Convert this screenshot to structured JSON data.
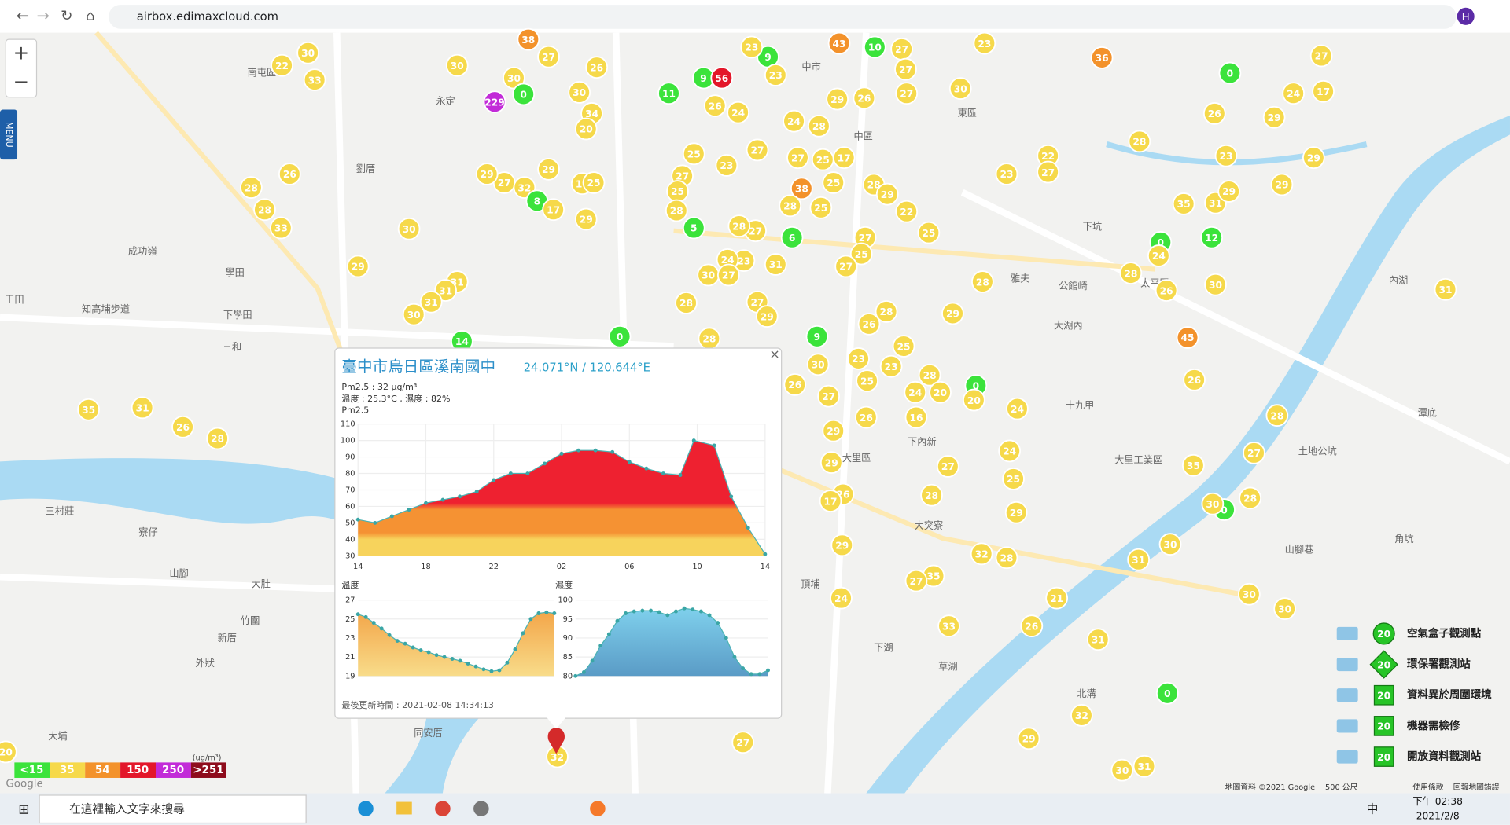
{
  "browser": {
    "url": "airbox.edimaxcloud.com",
    "profile": "H"
  },
  "map": {
    "zoom_in": "+",
    "zoom_out": "−",
    "menu": "MENU",
    "google": "Google",
    "attribution": "地圖資料 ©2021 Google",
    "scale": "500 公尺",
    "terms": "使用條款",
    "report": "回報地圖錯誤",
    "places": [
      "南屯區",
      "永定",
      "中市",
      "東區",
      "中區",
      "劉厝",
      "成功嶺",
      "學田",
      "下學田",
      "三和",
      "知高埔步道",
      "王田",
      "山腳",
      "大肚",
      "竹圍",
      "新厝",
      "外狀",
      "三村莊",
      "寮仔",
      "大埔",
      "同安厝",
      "大里區",
      "大突寮",
      "草湖",
      "北溝",
      "太平區",
      "內湖",
      "潭底",
      "角坑",
      "山腳巷",
      "公館崎",
      "大湖內",
      "十九甲",
      "大里工業區",
      "土地公坑",
      "下坑",
      "雅夫",
      "下內新",
      "頂埔",
      "下湖"
    ],
    "markers": [
      30,
      22,
      33,
      30,
      38,
      27,
      30,
      229,
      0,
      30,
      26,
      34,
      20,
      11,
      9,
      56,
      9,
      23,
      23,
      26,
      24,
      43,
      10,
      27,
      27,
      27,
      26,
      29,
      24,
      28,
      30,
      23,
      36,
      0,
      27,
      24,
      17,
      26,
      29,
      28,
      23,
      29,
      22,
      23,
      27,
      17,
      25,
      27,
      27,
      23,
      25,
      27,
      25,
      28,
      5,
      6,
      38,
      25,
      25,
      28,
      28,
      29,
      22,
      27,
      28,
      25,
      27,
      25,
      27,
      31,
      23,
      24,
      30,
      27,
      29,
      27,
      32,
      29,
      8,
      17,
      29,
      17,
      25,
      30,
      29,
      31,
      31,
      31,
      30,
      14,
      28,
      26,
      28,
      33,
      35,
      31,
      29,
      29,
      0,
      12,
      24,
      28,
      26,
      30,
      31,
      28,
      29,
      28,
      26,
      25,
      9,
      28,
      27,
      29,
      28,
      0,
      35,
      31,
      26,
      28,
      45,
      30,
      23,
      23,
      25,
      28,
      0,
      20,
      20,
      24,
      27,
      26,
      16,
      26,
      29,
      24,
      26,
      28,
      24,
      25,
      27,
      29,
      26,
      17,
      28,
      29,
      35,
      27,
      28,
      0,
      30,
      30,
      31,
      28,
      32,
      29,
      35,
      27,
      24,
      21,
      26,
      33,
      31,
      30,
      30,
      0,
      32,
      29,
      27,
      32,
      30,
      31,
      20
    ]
  },
  "aqi_scale": {
    "unit": "(ug/m³)",
    "levels": [
      {
        "label": "<15",
        "color": "#3be33b"
      },
      {
        "label": "35",
        "color": "#f6d94a"
      },
      {
        "label": "54",
        "color": "#f3922b"
      },
      {
        "label": "150",
        "color": "#e3172a"
      },
      {
        "label": "250",
        "color": "#c22bd8"
      },
      {
        "label": ">251",
        "color": "#8e0c1c"
      }
    ]
  },
  "station_legend": [
    {
      "icon": "20",
      "label": "空氣盒子觀測點"
    },
    {
      "icon": "20",
      "label": "環保署觀測站"
    },
    {
      "icon": "20",
      "label": "資料異於周圍環境"
    },
    {
      "icon": "20",
      "label": "機器需檢修"
    },
    {
      "icon": "20",
      "label": "開放資料觀測站"
    }
  ],
  "popup": {
    "close": "×",
    "title": "臺中市烏日區溪南國中",
    "coords": "24.071°N / 120.644°E",
    "pm25": "Pm2.5 : 32 μg/m³",
    "weather": "溫度 : 25.3°C , 濕度 : 82%",
    "updated": "最後更新時間 : 2021-02-08 14:34:13",
    "charts": [
      {
        "type": "area",
        "title": "Pm2.5",
        "x": [
          0,
          1,
          2,
          3,
          4,
          5,
          6,
          7,
          8,
          9,
          10,
          11,
          12,
          13,
          14,
          15,
          16,
          17,
          18,
          19,
          19.8,
          21,
          22,
          23,
          24
        ],
        "values": [
          52,
          50,
          54,
          58,
          62,
          64,
          66,
          69,
          76,
          80,
          80,
          86,
          92,
          94,
          94,
          93,
          87,
          83,
          80,
          79,
          100,
          97,
          66,
          47,
          31
        ],
        "xlim": [
          0,
          24
        ],
        "xticks": [
          {
            "value": 0,
            "label": "14"
          },
          {
            "value": 4,
            "label": "18"
          },
          {
            "value": 8,
            "label": "22"
          },
          {
            "value": 12,
            "label": "02"
          },
          {
            "value": 16,
            "label": "06"
          },
          {
            "value": 20,
            "label": "10"
          },
          {
            "value": 24,
            "label": "14"
          }
        ],
        "ylim": [
          30,
          110
        ],
        "yticks": [
          30,
          40,
          50,
          60,
          70,
          80,
          90,
          100,
          110
        ]
      },
      {
        "type": "area",
        "title": "溫度",
        "values": [
          25.5,
          25.2,
          24.6,
          24,
          23.3,
          22.7,
          22.4,
          22,
          21.7,
          21.5,
          21.2,
          21,
          20.8,
          20.6,
          20.3,
          20,
          19.7,
          19.5,
          19.6,
          20.4,
          21.8,
          23.5,
          25,
          25.6,
          25.7,
          25.6
        ],
        "ylim": [
          19,
          27
        ],
        "yticks": [
          19,
          21,
          23,
          25,
          27
        ]
      },
      {
        "type": "area",
        "title": "濕度",
        "values": [
          80,
          81,
          84,
          88,
          91,
          94.5,
          96.5,
          97,
          97.2,
          97.2,
          96.8,
          96,
          97,
          97.8,
          97.5,
          97,
          96,
          94,
          90,
          85,
          82,
          80.5,
          80.5,
          81.5
        ],
        "ylim": [
          80,
          100
        ],
        "yticks": [
          80,
          85,
          90,
          95,
          100
        ]
      }
    ]
  },
  "taskbar": {
    "search": "在這裡輸入文字來搜尋",
    "ime": "中",
    "time": "下午 02:38",
    "date": "2021/2/8"
  }
}
